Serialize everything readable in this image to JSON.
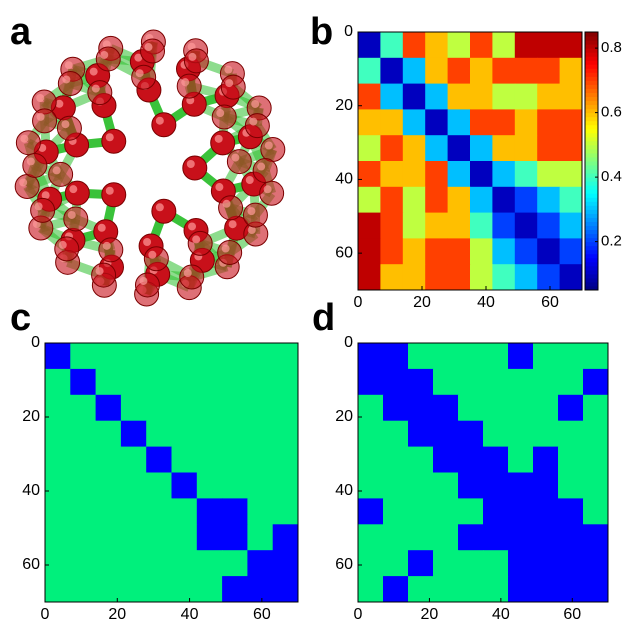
{
  "panel_a": {
    "label": "a"
  },
  "chart_data": [
    {
      "type": "heatmap",
      "label": "b",
      "colormap": "jet",
      "xlim": [
        0,
        70
      ],
      "ylim": [
        0,
        70
      ],
      "xticks": [
        0,
        20,
        40,
        60
      ],
      "yticks": [
        0,
        20,
        40,
        60
      ],
      "clim": [
        0.05,
        0.85
      ],
      "cticks": [
        0.2,
        0.4,
        0.6,
        0.8
      ],
      "values": [
        [
          0.1,
          0.4,
          0.7,
          0.6,
          0.5,
          0.7,
          0.5,
          0.8,
          0.8,
          0.8
        ],
        [
          0.4,
          0.1,
          0.3,
          0.6,
          0.7,
          0.6,
          0.7,
          0.7,
          0.7,
          0.6
        ],
        [
          0.7,
          0.3,
          0.1,
          0.3,
          0.6,
          0.6,
          0.5,
          0.5,
          0.6,
          0.6
        ],
        [
          0.6,
          0.6,
          0.3,
          0.1,
          0.3,
          0.7,
          0.7,
          0.6,
          0.7,
          0.7
        ],
        [
          0.5,
          0.7,
          0.6,
          0.3,
          0.1,
          0.3,
          0.6,
          0.6,
          0.7,
          0.7
        ],
        [
          0.7,
          0.6,
          0.6,
          0.7,
          0.3,
          0.1,
          0.3,
          0.4,
          0.5,
          0.5
        ],
        [
          0.5,
          0.7,
          0.5,
          0.7,
          0.6,
          0.3,
          0.1,
          0.2,
          0.3,
          0.4
        ],
        [
          0.8,
          0.7,
          0.5,
          0.6,
          0.6,
          0.4,
          0.2,
          0.1,
          0.2,
          0.3
        ],
        [
          0.8,
          0.7,
          0.6,
          0.7,
          0.7,
          0.5,
          0.3,
          0.2,
          0.1,
          0.2
        ],
        [
          0.8,
          0.6,
          0.6,
          0.7,
          0.7,
          0.5,
          0.4,
          0.3,
          0.2,
          0.1
        ]
      ]
    },
    {
      "type": "binary",
      "label": "c",
      "colors": [
        "#00f07c",
        "#0000ff"
      ],
      "xlim": [
        0,
        70
      ],
      "ylim": [
        0,
        70
      ],
      "xticks": [
        0,
        20,
        40,
        60
      ],
      "yticks": [
        0,
        20,
        40,
        60
      ],
      "values": [
        [
          1,
          0,
          0,
          0,
          0,
          0,
          0,
          0,
          0,
          0
        ],
        [
          0,
          1,
          0,
          0,
          0,
          0,
          0,
          0,
          0,
          0
        ],
        [
          0,
          0,
          1,
          0,
          0,
          0,
          0,
          0,
          0,
          0
        ],
        [
          0,
          0,
          0,
          1,
          0,
          0,
          0,
          0,
          0,
          0
        ],
        [
          0,
          0,
          0,
          0,
          1,
          0,
          0,
          0,
          0,
          0
        ],
        [
          0,
          0,
          0,
          0,
          0,
          1,
          0,
          0,
          0,
          0
        ],
        [
          0,
          0,
          0,
          0,
          0,
          0,
          1,
          1,
          0,
          0
        ],
        [
          0,
          0,
          0,
          0,
          0,
          0,
          1,
          1,
          0,
          1
        ],
        [
          0,
          0,
          0,
          0,
          0,
          0,
          0,
          0,
          1,
          1
        ],
        [
          0,
          0,
          0,
          0,
          0,
          0,
          0,
          1,
          1,
          1
        ]
      ]
    },
    {
      "type": "binary",
      "label": "d",
      "colors": [
        "#00f07c",
        "#0000ff"
      ],
      "xlim": [
        0,
        70
      ],
      "ylim": [
        0,
        70
      ],
      "xticks": [
        0,
        20,
        40,
        60
      ],
      "yticks": [
        0,
        20,
        40,
        60
      ],
      "values": [
        [
          1,
          1,
          0,
          0,
          0,
          0,
          1,
          0,
          0,
          0
        ],
        [
          1,
          1,
          1,
          0,
          0,
          0,
          0,
          0,
          0,
          1
        ],
        [
          0,
          1,
          1,
          1,
          0,
          0,
          0,
          0,
          1,
          0
        ],
        [
          0,
          0,
          1,
          1,
          1,
          0,
          0,
          0,
          0,
          0
        ],
        [
          0,
          0,
          0,
          1,
          1,
          1,
          0,
          1,
          0,
          0
        ],
        [
          0,
          0,
          0,
          0,
          1,
          1,
          1,
          1,
          0,
          0
        ],
        [
          1,
          0,
          0,
          0,
          0,
          1,
          1,
          1,
          1,
          0
        ],
        [
          0,
          0,
          0,
          0,
          1,
          1,
          1,
          1,
          1,
          1
        ],
        [
          0,
          0,
          1,
          0,
          0,
          0,
          1,
          1,
          1,
          1
        ],
        [
          0,
          1,
          0,
          0,
          0,
          0,
          1,
          1,
          1,
          1
        ]
      ]
    }
  ]
}
